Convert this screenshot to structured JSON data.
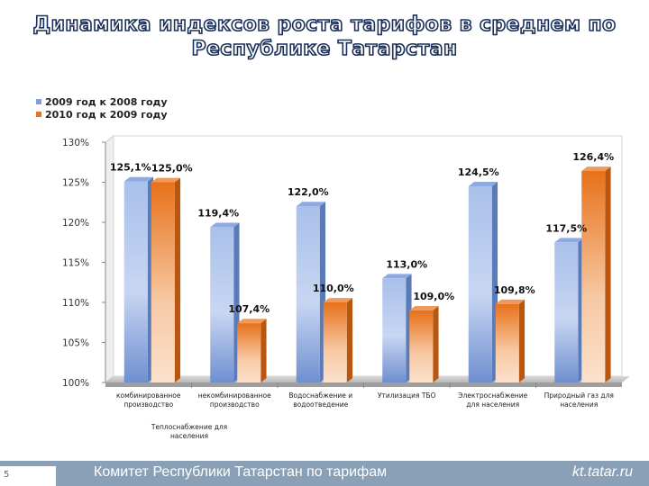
{
  "title": "Динамика индексов роста тарифов в среднем по Республике Татарстан",
  "title_lines": [
    "Динамика индексов роста тарифов в среднем по",
    "Республике Татарстан"
  ],
  "footer": {
    "page_number": "5",
    "organization": "Комитет Республики Татарстан по тарифам",
    "website": "kt.tatar.ru"
  },
  "extra_label": [
    "Теплоснабжение для",
    "населения"
  ],
  "chart_data": {
    "type": "bar",
    "title": "Динамика индексов роста тарифов в среднем по Республике Татарстан",
    "xlabel": "",
    "ylabel": "",
    "ylim": [
      100,
      130
    ],
    "yticks": [
      100,
      105,
      110,
      115,
      120,
      125,
      130
    ],
    "ytick_labels": [
      "100%",
      "105%",
      "110%",
      "115%",
      "120%",
      "125%",
      "130%"
    ],
    "grid": false,
    "legend_position": "top-left",
    "categories": [
      [
        "комбинированное",
        "производство"
      ],
      [
        "некомбинированное",
        "производство"
      ],
      [
        "Водоснабжение и",
        "водоотведение"
      ],
      [
        "Утилизация ТБО"
      ],
      [
        "Электроснабжение",
        "для населения"
      ],
      [
        "Природный газ для",
        "населения"
      ]
    ],
    "series": [
      {
        "name": "2009 год к 2008 году",
        "color": "#7f9fd8",
        "values": [
          125.1,
          119.4,
          122.0,
          113.0,
          124.5,
          117.5
        ],
        "labels": [
          "125,1%",
          "119,4%",
          "122,0%",
          "113,0%",
          "124,5%",
          "117,5%"
        ]
      },
      {
        "name": "2010 год к 2009 году",
        "color": "#e8741e",
        "values": [
          125.0,
          107.4,
          110.0,
          109.0,
          109.8,
          126.4
        ],
        "labels": [
          "125,0%",
          "107,4%",
          "110,0%",
          "109,0%",
          "109,8%",
          "126,4%"
        ]
      }
    ]
  }
}
